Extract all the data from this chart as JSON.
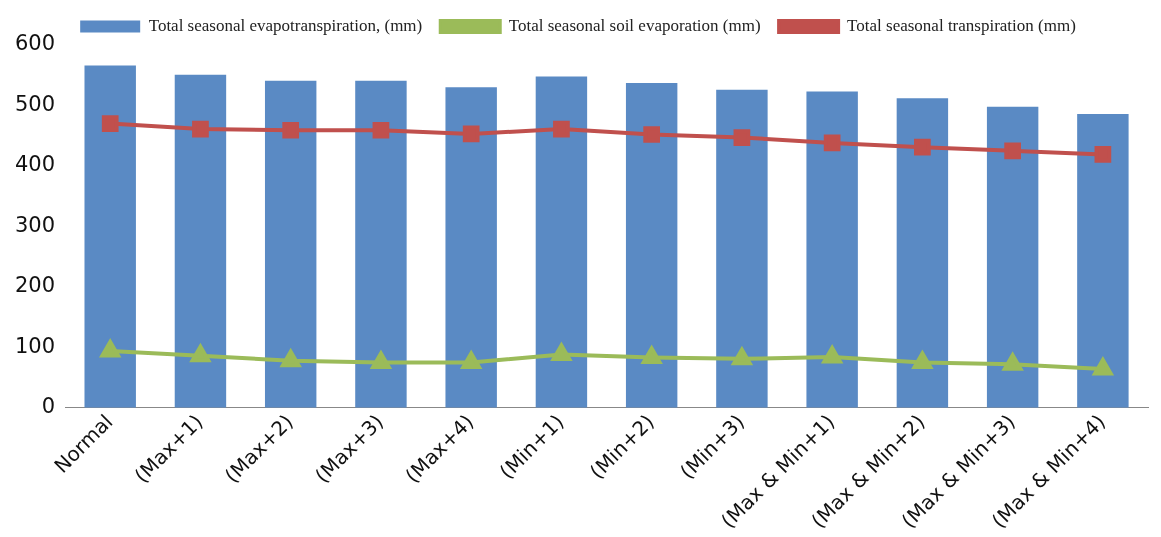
{
  "chart_data": {
    "type": "bar",
    "categories": [
      "Normal",
      "(Max+1)",
      "(Max+2)",
      "(Max+3)",
      "(Max+4)",
      "(Min+1)",
      "(Min+2)",
      "(Min+3)",
      "(Max & Min+1)",
      "(Max & Min+2)",
      "(Max & Min+3)",
      "(Max & Min+4)"
    ],
    "series": [
      {
        "name": "Total seasonal evapotranspiration, (mm)",
        "color": "#5a8ac4",
        "values": [
          566,
          551,
          541,
          541,
          530,
          548,
          537,
          526,
          523,
          512,
          498,
          486
        ]
      },
      {
        "name": "Total seasonal soil evaporation (mm)",
        "type": "line",
        "marker": "triangle",
        "color": "#9bbb59",
        "values": [
          94,
          86,
          78,
          75,
          75,
          88,
          83,
          81,
          84,
          75,
          72,
          64
        ]
      },
      {
        "name": "Total seasonal transpiration (mm)",
        "type": "line",
        "marker": "square",
        "color": "#c0504d",
        "values": [
          470,
          461,
          459,
          459,
          453,
          461,
          452,
          447,
          438,
          431,
          425,
          419
        ]
      }
    ],
    "ylim": [
      0,
      600
    ],
    "yticks": [
      0,
      100,
      200,
      300,
      400,
      500,
      600
    ],
    "grid": false,
    "legend": "top"
  }
}
